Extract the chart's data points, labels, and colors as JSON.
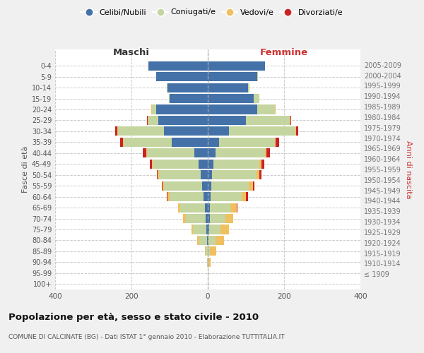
{
  "age_groups": [
    "100+",
    "95-99",
    "90-94",
    "85-89",
    "80-84",
    "75-79",
    "70-74",
    "65-69",
    "60-64",
    "55-59",
    "50-54",
    "45-49",
    "40-44",
    "35-39",
    "30-34",
    "25-29",
    "20-24",
    "15-19",
    "10-14",
    "5-9",
    "0-4"
  ],
  "birth_years": [
    "≤ 1909",
    "1910-1914",
    "1915-1919",
    "1920-1924",
    "1925-1929",
    "1930-1934",
    "1935-1939",
    "1940-1944",
    "1945-1949",
    "1950-1954",
    "1955-1959",
    "1960-1964",
    "1965-1969",
    "1970-1974",
    "1975-1979",
    "1980-1984",
    "1985-1989",
    "1990-1994",
    "1995-1999",
    "2000-2004",
    "2005-2009"
  ],
  "male": {
    "celibi": [
      0,
      0,
      0,
      0,
      2,
      3,
      5,
      8,
      12,
      15,
      18,
      25,
      35,
      95,
      115,
      130,
      135,
      100,
      105,
      135,
      155
    ],
    "coniugati": [
      0,
      0,
      2,
      5,
      20,
      35,
      52,
      65,
      88,
      100,
      110,
      120,
      125,
      125,
      120,
      25,
      12,
      2,
      2,
      0,
      0
    ],
    "vedovi": [
      0,
      0,
      0,
      2,
      5,
      5,
      8,
      5,
      5,
      3,
      3,
      2,
      2,
      2,
      2,
      2,
      2,
      0,
      0,
      0,
      0
    ],
    "divorziati": [
      0,
      0,
      0,
      0,
      0,
      0,
      0,
      0,
      2,
      2,
      2,
      5,
      8,
      8,
      5,
      2,
      0,
      0,
      0,
      0,
      0
    ]
  },
  "female": {
    "nubili": [
      0,
      0,
      0,
      0,
      2,
      3,
      5,
      5,
      8,
      10,
      12,
      15,
      20,
      30,
      55,
      100,
      130,
      120,
      105,
      130,
      150
    ],
    "coniugate": [
      0,
      0,
      2,
      5,
      18,
      30,
      42,
      55,
      80,
      98,
      115,
      120,
      130,
      145,
      175,
      115,
      45,
      15,
      5,
      2,
      0
    ],
    "vedove": [
      0,
      1,
      5,
      18,
      22,
      22,
      20,
      15,
      12,
      10,
      8,
      5,
      3,
      2,
      2,
      2,
      2,
      0,
      0,
      0,
      0
    ],
    "divorziate": [
      0,
      0,
      0,
      0,
      0,
      0,
      0,
      2,
      5,
      5,
      5,
      8,
      10,
      10,
      5,
      2,
      0,
      0,
      0,
      0,
      0
    ]
  },
  "colors": {
    "celibi_nubili": "#4472a8",
    "coniugati_e": "#c5d5a0",
    "vedovi_e": "#f0c060",
    "divorziati_e": "#cc2222"
  },
  "title": "Popolazione per età, sesso e stato civile - 2010",
  "subtitle": "COMUNE DI CALCINATE (BG) - Dati ISTAT 1° gennaio 2010 - Elaborazione TUTTITALIA.IT",
  "xlabel_left": "Maschi",
  "xlabel_right": "Femmine",
  "ylabel_left": "Fasce di età",
  "ylabel_right": "Anni di nascita",
  "xlim": 400,
  "legend_labels": [
    "Celibi/Nubili",
    "Coniugati/e",
    "Vedovi/e",
    "Divorziati/e"
  ],
  "bg_color": "#f0f0f0",
  "plot_bg_color": "#ffffff"
}
